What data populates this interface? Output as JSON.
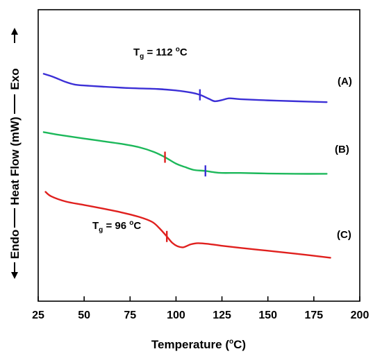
{
  "chart_data": {
    "type": "line",
    "xlabel": "Temperature (°C)",
    "xlabel_parts": {
      "before": "Temperature (",
      "sup": "o",
      "after": "C)"
    },
    "xlim": [
      25,
      200
    ],
    "xticks": [
      25,
      50,
      75,
      100,
      125,
      150,
      175,
      200
    ],
    "xtick_labels": [
      "25",
      "50",
      "75",
      "100",
      "125",
      "150",
      "175",
      "200"
    ],
    "ylabel": "Endo —Heat Flow (mW) —Exo",
    "ylabel_parts": {
      "endo": "Endo",
      "heat": "Heat Flow (mW)",
      "exo": "Exo"
    },
    "y_ticks_shown": false,
    "grid": false,
    "series": [
      {
        "name": "(A)",
        "color": "#3b2fd6",
        "x": [
          28,
          33,
          40,
          45,
          50,
          60,
          75,
          90,
          100,
          108,
          113,
          118,
          121,
          125,
          129,
          135,
          150,
          165,
          182
        ],
        "y": [
          0.78,
          0.77,
          0.752,
          0.743,
          0.74,
          0.736,
          0.731,
          0.728,
          0.723,
          0.716,
          0.708,
          0.694,
          0.686,
          0.69,
          0.696,
          0.693,
          0.689,
          0.686,
          0.683
        ]
      },
      {
        "name": "(B)",
        "color": "#1cb85a",
        "x": [
          28,
          35,
          50,
          60,
          70,
          80,
          88,
          94,
          100,
          105,
          110,
          116,
          120,
          125,
          135,
          150,
          165,
          182
        ],
        "y": [
          0.58,
          0.572,
          0.558,
          0.549,
          0.54,
          0.528,
          0.512,
          0.494,
          0.472,
          0.46,
          0.45,
          0.447,
          0.443,
          0.44,
          0.44,
          0.438,
          0.437,
          0.437
        ]
      },
      {
        "name": "(C)",
        "color": "#e0201e",
        "x": [
          29,
          32,
          40,
          50,
          60,
          70,
          80,
          87,
          91,
          95,
          98,
          101,
          104,
          108,
          112,
          118,
          125,
          135,
          150,
          165,
          184
        ],
        "y": [
          0.375,
          0.36,
          0.342,
          0.33,
          0.318,
          0.305,
          0.289,
          0.272,
          0.25,
          0.222,
          0.2,
          0.188,
          0.185,
          0.195,
          0.199,
          0.196,
          0.19,
          0.183,
          0.173,
          0.163,
          0.149
        ]
      }
    ],
    "curve_labels": [
      "(A)",
      "(B)",
      "(C)"
    ],
    "tg_markers": [
      {
        "series": "(A)",
        "x": 113,
        "color": "#3b2fd6"
      },
      {
        "series": "(B)",
        "x": 94,
        "color": "#e0201e"
      },
      {
        "series": "(B)",
        "x": 116,
        "color": "#3b2fd6"
      },
      {
        "series": "(C)",
        "x": 95,
        "color": "#e0201e"
      }
    ],
    "annotations": [
      {
        "label": "Tg = 112 °C",
        "base": "T",
        "sub": "g",
        "mid": " = 112 ",
        "sup": "o",
        "after": "C",
        "near_series": "(A)"
      },
      {
        "label": "Tg = 96 °C",
        "base": "T",
        "sub": "g",
        "mid": " = 96 ",
        "sup": "o",
        "after": "C",
        "near_series": "(C)"
      }
    ]
  }
}
